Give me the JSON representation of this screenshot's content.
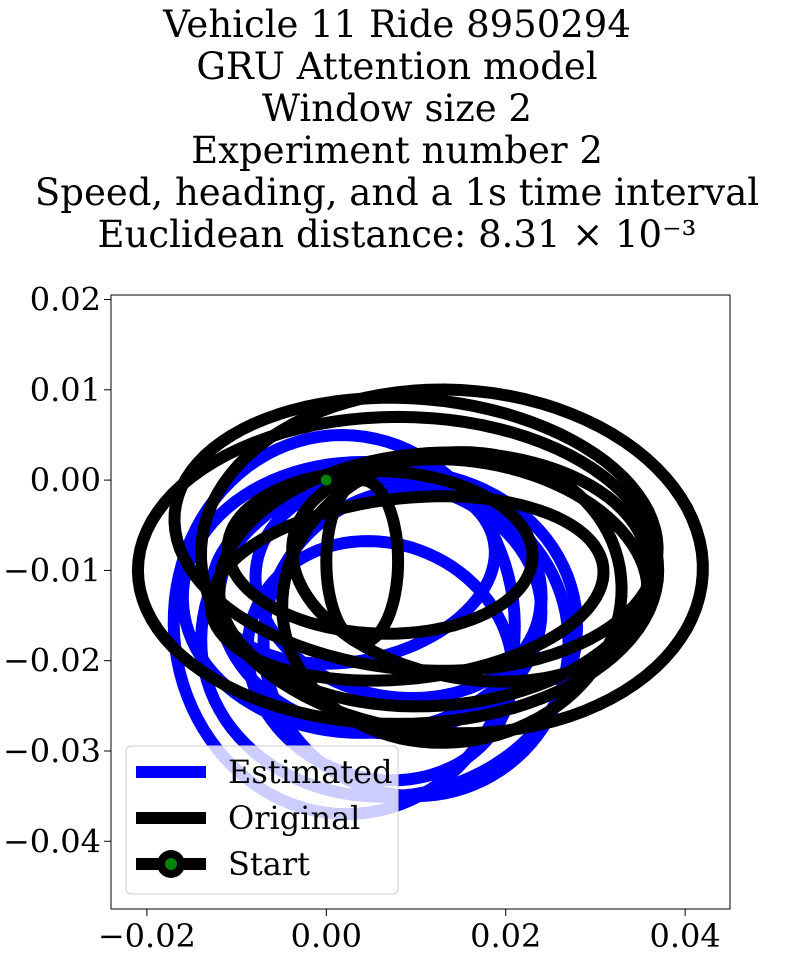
{
  "chart_data": {
    "type": "line",
    "title_lines": [
      "Vehicle 11 Ride 8950294",
      "GRU Attention model",
      "Window size 2",
      "Experiment number 2",
      "Speed, heading, and a 1s time interval",
      "Euclidean distance: 8.31 × 10⁻³"
    ],
    "xlabel": "",
    "ylabel": "",
    "xlim": [
      -0.024,
      0.045
    ],
    "ylim": [
      -0.0475,
      0.0205
    ],
    "x_ticks": [
      -0.02,
      0.0,
      0.02,
      0.04
    ],
    "x_tick_labels": [
      "−0.02",
      "0.00",
      "0.02",
      "0.04"
    ],
    "y_ticks": [
      0.02,
      0.01,
      0.0,
      -0.01,
      -0.02,
      -0.03,
      -0.04
    ],
    "y_tick_labels": [
      "0.02",
      "0.01",
      "0.00",
      "−0.01",
      "−0.02",
      "−0.03",
      "−0.04"
    ],
    "grid": false,
    "legend_position": "lower-left",
    "series": [
      {
        "name": "Estimated",
        "color": "#0000ff",
        "loops": [
          {
            "cx": 0.008,
            "cy": -0.012,
            "rx": 0.016,
            "ry": 0.012,
            "rot": -10
          },
          {
            "cx": 0.006,
            "cy": -0.014,
            "rx": 0.018,
            "ry": 0.014,
            "rot": -5
          },
          {
            "cx": 0.004,
            "cy": -0.013,
            "rx": 0.02,
            "ry": 0.015,
            "rot": 0
          },
          {
            "cx": 0.007,
            "cy": -0.017,
            "rx": 0.021,
            "ry": 0.018,
            "rot": 8
          },
          {
            "cx": 0.002,
            "cy": -0.016,
            "rx": 0.019,
            "ry": 0.021,
            "rot": 4
          },
          {
            "cx": 0.01,
            "cy": -0.018,
            "rx": 0.017,
            "ry": 0.017,
            "rot": -15
          },
          {
            "cx": 0.003,
            "cy": -0.01,
            "rx": 0.016,
            "ry": 0.01,
            "rot": 12
          },
          {
            "cx": 0.006,
            "cy": -0.02,
            "rx": 0.015,
            "ry": 0.013,
            "rot": -20
          }
        ]
      },
      {
        "name": "Original",
        "color": "#000000",
        "loops": [
          {
            "cx": 0.014,
            "cy": -0.009,
            "rx": 0.028,
            "ry": 0.019,
            "rot": -3
          },
          {
            "cx": 0.01,
            "cy": -0.006,
            "rx": 0.027,
            "ry": 0.015,
            "rot": -5
          },
          {
            "cx": 0.012,
            "cy": -0.011,
            "rx": 0.024,
            "ry": 0.014,
            "rot": 4
          },
          {
            "cx": 0.008,
            "cy": -0.01,
            "rx": 0.029,
            "ry": 0.017,
            "rot": 0
          },
          {
            "cx": 0.016,
            "cy": -0.01,
            "rx": 0.02,
            "ry": 0.012,
            "rot": -10
          },
          {
            "cx": 0.009,
            "cy": -0.012,
            "rx": 0.022,
            "ry": 0.01,
            "rot": 6
          },
          {
            "cx": 0.006,
            "cy": -0.008,
            "rx": 0.017,
            "ry": 0.009,
            "rot": -2
          },
          {
            "cx": 0.014,
            "cy": -0.013,
            "rx": 0.019,
            "ry": 0.016,
            "rot": 10
          },
          {
            "cx": 0.004,
            "cy": -0.009,
            "rx": 0.004,
            "ry": 0.009,
            "rot": 0
          }
        ]
      }
    ],
    "start_point": {
      "name": "Start",
      "x": 0.0,
      "y": 0.0,
      "color": "#008000"
    }
  }
}
